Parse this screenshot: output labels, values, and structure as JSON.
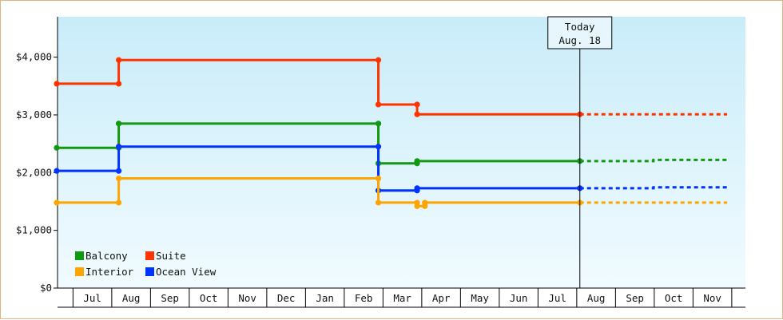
{
  "chart_data": {
    "type": "line",
    "step": true,
    "title": "",
    "xlabel": "",
    "ylabel": "",
    "ylim": [
      0,
      4700
    ],
    "y_ticks": [
      {
        "value": 0,
        "label": "$0"
      },
      {
        "value": 1000,
        "label": "$1,000"
      },
      {
        "value": 2000,
        "label": "$2,000"
      },
      {
        "value": 3000,
        "label": "$3,000"
      },
      {
        "value": 4000,
        "label": "$4,000"
      }
    ],
    "months": [
      "Jul",
      "Aug",
      "Sep",
      "Oct",
      "Nov",
      "Dec",
      "Jan",
      "Feb",
      "Mar",
      "Apr",
      "May",
      "Jun",
      "Jul",
      "Aug",
      "Sep",
      "Oct",
      "Nov"
    ],
    "xlim": [
      0,
      17.3
    ],
    "today": {
      "x": 13.5,
      "line1": "Today",
      "line2": "Aug. 18"
    },
    "grid": false,
    "background_gradient": [
      "#c9ecf9",
      "#f1fbff"
    ],
    "legend": {
      "placement": "bottom-left",
      "entries": [
        {
          "name": "Balcony",
          "color": "#119911"
        },
        {
          "name": "Suite",
          "color": "#ff3300"
        },
        {
          "name": "Interior",
          "color": "#ffa500"
        },
        {
          "name": "Ocean View",
          "color": "#0033ff"
        }
      ]
    },
    "series": [
      {
        "name": "Suite",
        "color": "#ff3300",
        "points": [
          [
            0,
            3540
          ],
          [
            1.6,
            3540
          ],
          [
            1.6,
            3950
          ],
          [
            8.3,
            3950
          ],
          [
            8.3,
            3180
          ],
          [
            9.3,
            3180
          ],
          [
            9.3,
            3010
          ],
          [
            13.5,
            3010
          ]
        ],
        "projection": [
          [
            13.5,
            3010
          ],
          [
            17.3,
            3010
          ]
        ]
      },
      {
        "name": "Balcony",
        "color": "#119911",
        "points": [
          [
            0,
            2430
          ],
          [
            1.6,
            2430
          ],
          [
            1.6,
            2850
          ],
          [
            8.3,
            2850
          ],
          [
            8.3,
            2160
          ],
          [
            9.3,
            2160
          ],
          [
            9.3,
            2200
          ],
          [
            13.5,
            2200
          ]
        ],
        "projection": [
          [
            13.5,
            2200
          ],
          [
            15.4,
            2200
          ],
          [
            15.4,
            2220
          ],
          [
            17.3,
            2220
          ]
        ]
      },
      {
        "name": "Ocean View",
        "color": "#0033ff",
        "points": [
          [
            0,
            2030
          ],
          [
            1.6,
            2030
          ],
          [
            1.6,
            2450
          ],
          [
            8.3,
            2450
          ],
          [
            8.3,
            1690
          ],
          [
            9.3,
            1690
          ],
          [
            9.3,
            1730
          ],
          [
            13.5,
            1730
          ]
        ],
        "projection": [
          [
            13.5,
            1730
          ],
          [
            15.4,
            1730
          ],
          [
            15.4,
            1745
          ],
          [
            17.3,
            1745
          ]
        ]
      },
      {
        "name": "Interior",
        "color": "#ffa500",
        "points": [
          [
            0,
            1480
          ],
          [
            1.6,
            1480
          ],
          [
            1.6,
            1900
          ],
          [
            8.3,
            1900
          ],
          [
            8.3,
            1480
          ],
          [
            9.3,
            1480
          ],
          [
            9.3,
            1420
          ],
          [
            9.5,
            1420
          ],
          [
            9.5,
            1480
          ],
          [
            13.5,
            1480
          ]
        ],
        "projection": [
          [
            13.5,
            1480
          ],
          [
            17.3,
            1480
          ]
        ]
      }
    ]
  }
}
